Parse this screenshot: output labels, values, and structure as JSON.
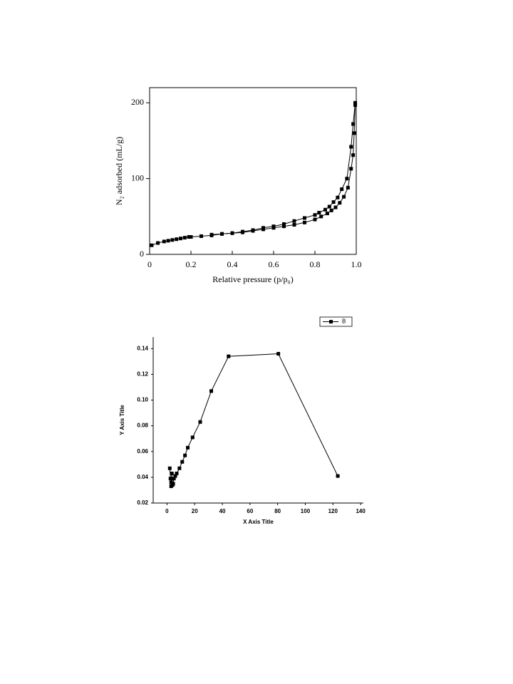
{
  "chart_data": [
    {
      "type": "line",
      "xlabel": "Relative pressure (p/p₀)",
      "ylabel": "N₂ adsorbed (mL/g)",
      "xlim": [
        0,
        1
      ],
      "ylim": [
        0,
        220
      ],
      "xticks": [
        0,
        0.2,
        0.4,
        0.6,
        0.8,
        {
          "value": 1,
          "label": "1.0"
        }
      ],
      "yticks": [
        0,
        100,
        200
      ],
      "color": "#000000",
      "marker": "square",
      "grid": false,
      "series": [
        {
          "x": [
            0.01,
            0.04,
            0.07,
            0.09,
            0.11,
            0.13,
            0.15,
            0.17,
            0.19,
            0.2,
            0.25,
            0.3,
            0.35,
            0.4,
            0.45,
            0.5,
            0.55,
            0.6,
            0.65,
            0.7,
            0.75,
            0.8,
            0.83,
            0.86,
            0.88,
            0.9,
            0.92,
            0.94,
            0.96,
            0.975,
            0.985,
            0.99,
            0.995
          ],
          "values": [
            12,
            15,
            17,
            18,
            19,
            20,
            21,
            22,
            23,
            23,
            24,
            25,
            27,
            28,
            29,
            31,
            33,
            35,
            37,
            39,
            42,
            46,
            50,
            54,
            58,
            62,
            68,
            76,
            88,
            113,
            131,
            160,
            197
          ]
        },
        {
          "x": [
            0.995,
            0.985,
            0.975,
            0.955,
            0.93,
            0.91,
            0.89,
            0.87,
            0.85,
            0.82,
            0.8,
            0.75,
            0.7,
            0.65,
            0.6,
            0.55,
            0.5,
            0.45,
            0.4,
            0.35,
            0.3
          ],
          "values": [
            200,
            172,
            142,
            100,
            86,
            75,
            69,
            63,
            59,
            55,
            52,
            48,
            44,
            40,
            37,
            35,
            32,
            30,
            28,
            27,
            26
          ]
        }
      ]
    },
    {
      "type": "line",
      "xlabel": "X Axis Title",
      "ylabel": "Y Axis Title",
      "xlim": [
        -10,
        142
      ],
      "ylim": [
        0.02,
        0.149
      ],
      "xticks": [
        0,
        20,
        40,
        60,
        80,
        100,
        120,
        140
      ],
      "yticks": [
        0.02,
        0.04,
        0.06,
        0.08,
        {
          "value": 0.1,
          "label": "0.10"
        },
        0.12,
        0.14
      ],
      "color": "#000000",
      "marker": "square",
      "grid": false,
      "legend": "top-right",
      "series": [
        {
          "name": "B",
          "x": [
            2,
            2.5,
            3,
            3,
            3.5,
            4,
            4.5,
            5,
            6,
            7,
            9,
            11,
            13,
            15,
            18.5,
            24,
            32,
            44.5,
            80.5,
            123.5
          ],
          "values": [
            0.047,
            0.039,
            0.036,
            0.033,
            0.043,
            0.034,
            0.035,
            0.039,
            0.041,
            0.043,
            0.047,
            0.052,
            0.057,
            0.063,
            0.071,
            0.083,
            0.107,
            0.134,
            0.136,
            0.041
          ]
        }
      ]
    }
  ]
}
